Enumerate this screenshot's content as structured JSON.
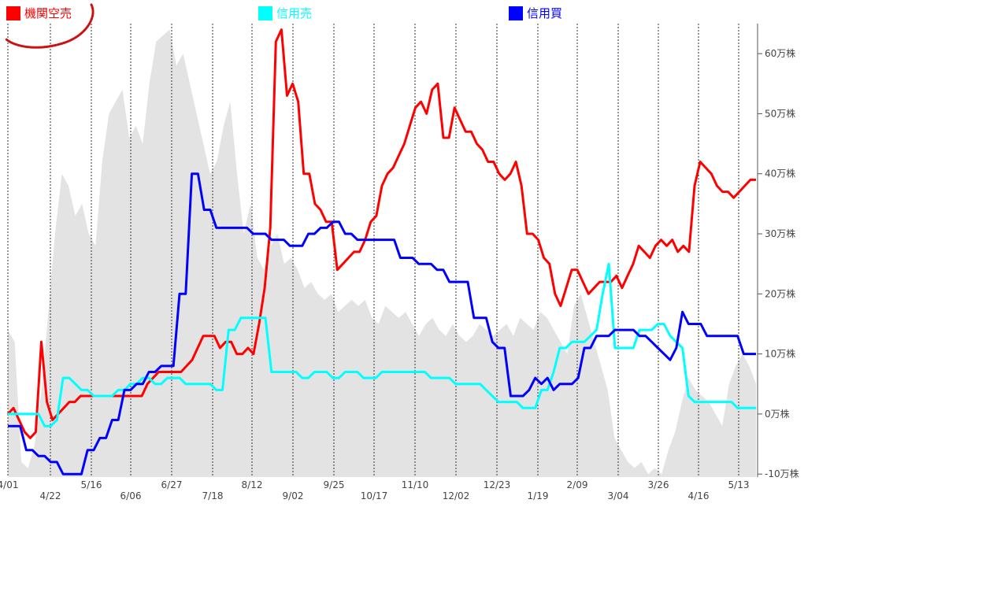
{
  "chart_data": {
    "type": "line",
    "title": "",
    "xlabel": "",
    "ylabel": "",
    "x_ticks_top_row": [
      "4/01",
      "5/16",
      "6/27",
      "8/12",
      "9/25",
      "11/10",
      "12/23",
      "2/09",
      "3/26",
      "5/13"
    ],
    "x_ticks_bottom_row": [
      "4/22",
      "6/06",
      "7/18",
      "9/02",
      "10/17",
      "12/02",
      "1/19",
      "3/04",
      "4/16"
    ],
    "y_ticks": [
      "60万株",
      "50万株",
      "40万株",
      "30万株",
      "20万株",
      "10万株",
      "0万株",
      "-10万株"
    ],
    "y_tick_values": [
      60,
      50,
      40,
      30,
      20,
      10,
      0,
      -10
    ],
    "ylim": [
      -10.5,
      65
    ],
    "grid": "vertical-dotted",
    "legend_position": "top",
    "background_area": {
      "color": "#e3e3e3",
      "values": [
        14,
        12,
        -8,
        -9,
        -5,
        4,
        17,
        30,
        40,
        38,
        33,
        35,
        30,
        28,
        42,
        50,
        52,
        54,
        46,
        48,
        45,
        55,
        62,
        63,
        64,
        58,
        60,
        55,
        50,
        45,
        40,
        42,
        48,
        52,
        40,
        30,
        35,
        26,
        24,
        28,
        30,
        25,
        26,
        24,
        21,
        22,
        20,
        19,
        20,
        17,
        18,
        19,
        18,
        19,
        16,
        15,
        18,
        17,
        16,
        17,
        15,
        13,
        15,
        16,
        14,
        13,
        15,
        13,
        12,
        13,
        15,
        14,
        13,
        14,
        15,
        13,
        16,
        15,
        14,
        17,
        16,
        14,
        12,
        10,
        18,
        20,
        16,
        12,
        8,
        4,
        -4,
        -6,
        -8,
        -9,
        -8,
        -10,
        -9,
        -10,
        -6,
        -3,
        2,
        6,
        4,
        3,
        2,
        0,
        -2,
        5,
        8,
        10,
        8,
        5
      ]
    },
    "series": [
      {
        "name": "機関空売",
        "color": "#ff0000",
        "values": [
          0,
          1,
          -1,
          -3,
          -4,
          -3,
          12,
          2,
          -1,
          0,
          1,
          2,
          2,
          3,
          3,
          3,
          3,
          3,
          3,
          3,
          3,
          3,
          3,
          3,
          3,
          5,
          6,
          7,
          7,
          7,
          7,
          7,
          8,
          9,
          11,
          13,
          13,
          13,
          11,
          12,
          12,
          10,
          10,
          11,
          10,
          15,
          21,
          31,
          62,
          64,
          53,
          55,
          52,
          40,
          40,
          35,
          34,
          32,
          32,
          24,
          25,
          26,
          27,
          27,
          29,
          32,
          33,
          38,
          40,
          41,
          43,
          45,
          48,
          51,
          52,
          50,
          54,
          55,
          46,
          46,
          51,
          49,
          47,
          47,
          45,
          44,
          42,
          42,
          40,
          39,
          40,
          42,
          38,
          30,
          30,
          29,
          26,
          25,
          20,
          18,
          21,
          24,
          24,
          22,
          20,
          21,
          22,
          22,
          22,
          23,
          21,
          23,
          25,
          28,
          27,
          26,
          28,
          29,
          28,
          29,
          27,
          28,
          27,
          38,
          42,
          41,
          40,
          38,
          37,
          37,
          36,
          37,
          38,
          39,
          39
        ]
      },
      {
        "name": "信用売",
        "color": "#00ffff",
        "values": [
          0,
          0,
          0,
          0,
          0,
          0,
          -2,
          -2,
          -1,
          6,
          6,
          5,
          4,
          4,
          3,
          3,
          3,
          3,
          4,
          4,
          5,
          5,
          6,
          6,
          5,
          5,
          6,
          6,
          6,
          5,
          5,
          5,
          5,
          5,
          4,
          4,
          14,
          14,
          16,
          16,
          16,
          16,
          16,
          7,
          7,
          7,
          7,
          7,
          6,
          6,
          7,
          7,
          7,
          6,
          6,
          7,
          7,
          7,
          6,
          6,
          6,
          7,
          7,
          7,
          7,
          7,
          7,
          7,
          7,
          6,
          6,
          6,
          6,
          5,
          5,
          5,
          5,
          5,
          4,
          3,
          2,
          2,
          2,
          2,
          1,
          1,
          1,
          4,
          4,
          7,
          11,
          11,
          12,
          12,
          12,
          13,
          14,
          20,
          25,
          11,
          11,
          11,
          11,
          14,
          14,
          14,
          15,
          15,
          13,
          12,
          11,
          3,
          2,
          2,
          2,
          2,
          2,
          2,
          2,
          1,
          1,
          1,
          1
        ]
      },
      {
        "name": "信用買",
        "color": "#0000ff",
        "values": [
          -2,
          -2,
          -2,
          -6,
          -6,
          -7,
          -7,
          -8,
          -8,
          -10,
          -10,
          -10,
          -10,
          -6,
          -6,
          -4,
          -4,
          -1,
          -1,
          4,
          4,
          5,
          5,
          7,
          7,
          8,
          8,
          8,
          20,
          20,
          40,
          40,
          34,
          34,
          31,
          31,
          31,
          31,
          31,
          31,
          30,
          30,
          30,
          29,
          29,
          29,
          28,
          28,
          28,
          30,
          30,
          31,
          31,
          32,
          32,
          30,
          30,
          29,
          29,
          29,
          29,
          29,
          29,
          29,
          26,
          26,
          26,
          25,
          25,
          25,
          24,
          24,
          22,
          22,
          22,
          22,
          16,
          16,
          16,
          12,
          11,
          11,
          3,
          3,
          3,
          4,
          6,
          5,
          6,
          4,
          5,
          5,
          5,
          6,
          11,
          11,
          13,
          13,
          13,
          14,
          14,
          14,
          14,
          13,
          13,
          12,
          11,
          10,
          9,
          11,
          17,
          15,
          15,
          15,
          13,
          13,
          13,
          13,
          13,
          13,
          10,
          10,
          10
        ]
      }
    ]
  }
}
